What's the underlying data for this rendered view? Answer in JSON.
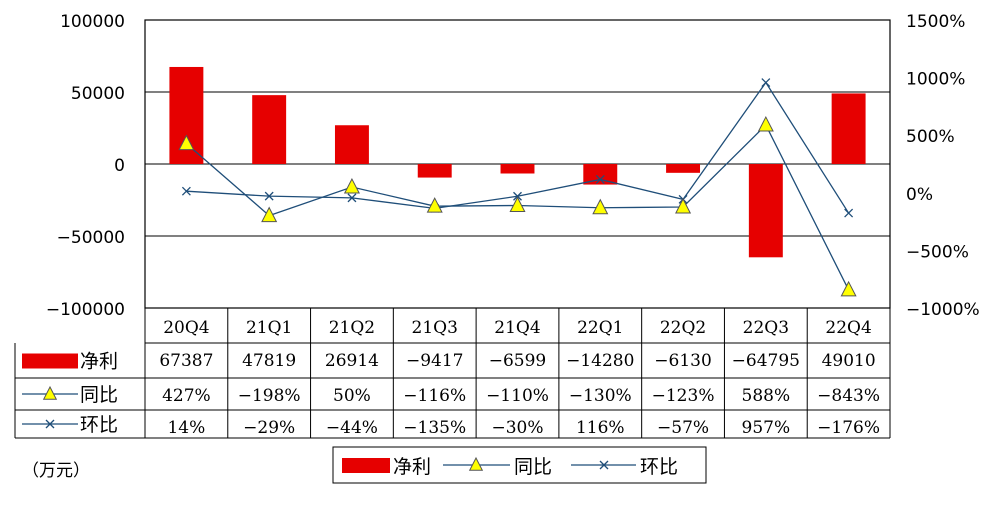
{
  "chart_data": {
    "type": "bar",
    "categories": [
      "20Q4",
      "21Q1",
      "21Q2",
      "21Q3",
      "21Q4",
      "22Q1",
      "22Q2",
      "22Q3",
      "22Q4"
    ],
    "series": [
      {
        "name": "净利",
        "kind": "bar",
        "axis": "left",
        "color": "#e60000",
        "values": [
          67387,
          47819,
          26914,
          -9417,
          -6599,
          -14280,
          -6130,
          -64795,
          49010
        ],
        "labels": [
          "67387",
          "47819",
          "26914",
          "−9417",
          "−6599",
          "−14280",
          "−6130",
          "−64795",
          "49010"
        ]
      },
      {
        "name": "同比",
        "kind": "line",
        "axis": "right",
        "color": "#1f4e79",
        "marker": "triangle",
        "marker_color": "#ffff00",
        "values": [
          427,
          -198,
          50,
          -116,
          -110,
          -130,
          -123,
          588,
          -843
        ],
        "labels": [
          "427%",
          "−198%",
          "50%",
          "−116%",
          "−110%",
          "−130%",
          "−123%",
          "588%",
          "−843%"
        ]
      },
      {
        "name": "环比",
        "kind": "line",
        "axis": "right",
        "color": "#1f4e79",
        "marker": "x",
        "values": [
          14,
          -29,
          -44,
          -135,
          -30,
          116,
          -57,
          957,
          -176
        ],
        "labels": [
          "14%",
          "−29%",
          "−44%",
          "−135%",
          "−30%",
          "116%",
          "−57%",
          "957%",
          "−176%"
        ]
      }
    ],
    "y_left": {
      "range": [
        -100000,
        100000
      ],
      "ticks": [
        "100000",
        "50000",
        "0",
        "−50000",
        "−100000"
      ]
    },
    "y_right": {
      "range": [
        -1000,
        1500
      ],
      "ticks": [
        "1500%",
        "1000%",
        "500%",
        "0%",
        "−500%",
        "−1000%"
      ]
    },
    "unit": "（万元）",
    "legend": {
      "position": "bottom"
    },
    "grid": true
  }
}
